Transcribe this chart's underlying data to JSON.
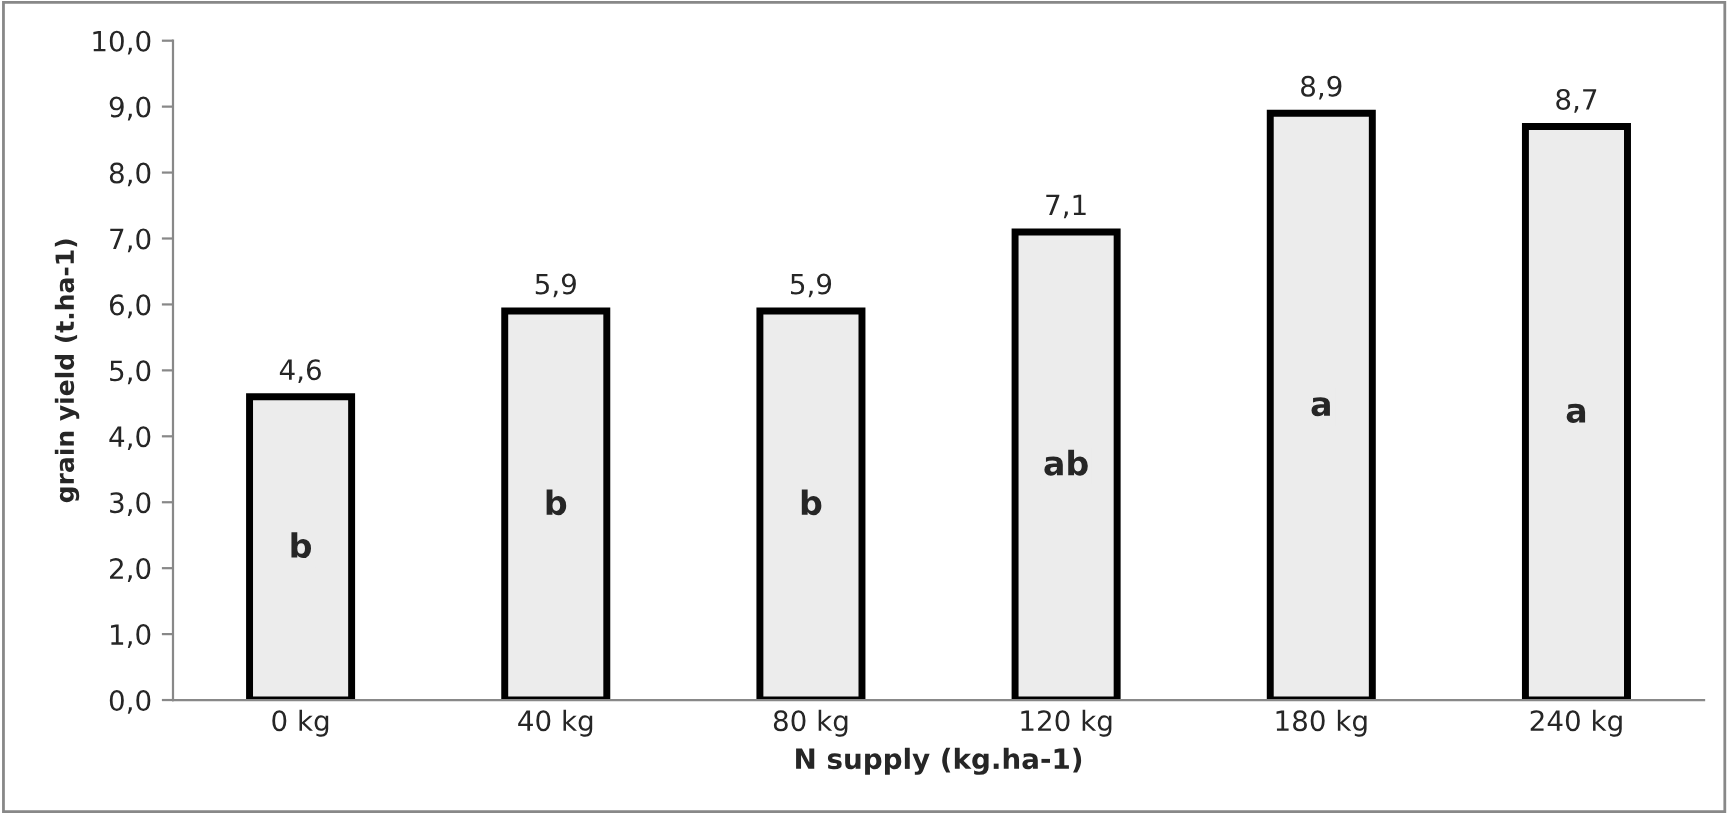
{
  "chart_data": {
    "type": "bar",
    "xlabel": "N supply (kg.ha-1)",
    "ylabel": "grain yield (t.ha-1)",
    "categories": [
      "0 kg",
      "40 kg",
      "80 kg",
      "120 kg",
      "180 kg",
      "240 kg"
    ],
    "values": [
      4.6,
      5.9,
      5.9,
      7.1,
      8.9,
      8.7
    ],
    "value_labels": [
      "4,6",
      "5,9",
      "5,9",
      "7,1",
      "8,9",
      "8,7"
    ],
    "color": "#ececec",
    "ylim": [
      0,
      10
    ],
    "yticks": [
      {
        "value": 0,
        "label": "0,0"
      },
      {
        "value": 1,
        "label": "1,0"
      },
      {
        "value": 2,
        "label": "2,0"
      },
      {
        "value": 3,
        "label": "3,0"
      },
      {
        "value": 4,
        "label": "4,0"
      },
      {
        "value": 5,
        "label": "5,0"
      },
      {
        "value": 6,
        "label": "6,0"
      },
      {
        "value": 7,
        "label": "7,0"
      },
      {
        "value": 8,
        "label": "8,0"
      },
      {
        "value": 9,
        "label": "9,0"
      },
      {
        "value": 10,
        "label": "10,0"
      }
    ],
    "annotations": [
      "b",
      "b",
      "b",
      "ab",
      "a",
      "a"
    ],
    "grid": false,
    "legend": false
  }
}
